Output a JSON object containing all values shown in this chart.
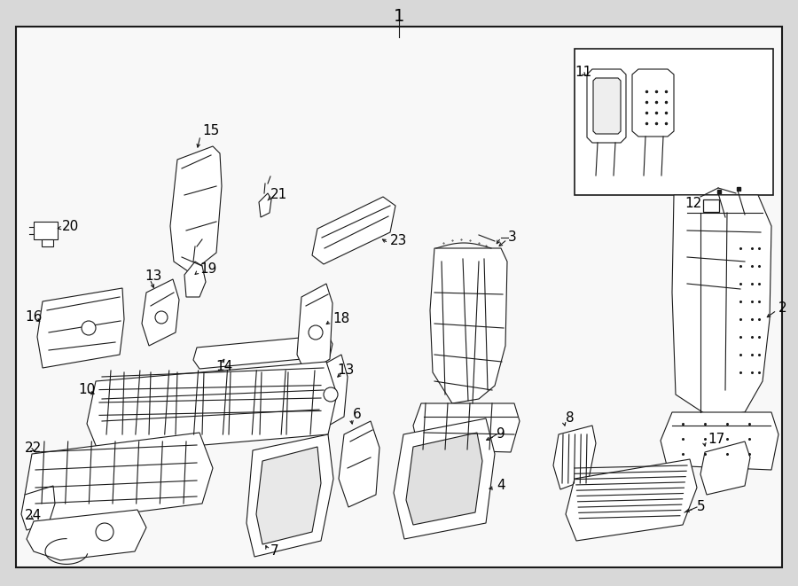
{
  "bg_color": "#f0f0f0",
  "border_color": "#1a1a1a",
  "line_color": "#1a1a1a",
  "white": "#ffffff",
  "label_fs": 11,
  "inner_bg": "#f8f8f8",
  "outer_bg": "#d8d8d8",
  "lw": 0.8
}
